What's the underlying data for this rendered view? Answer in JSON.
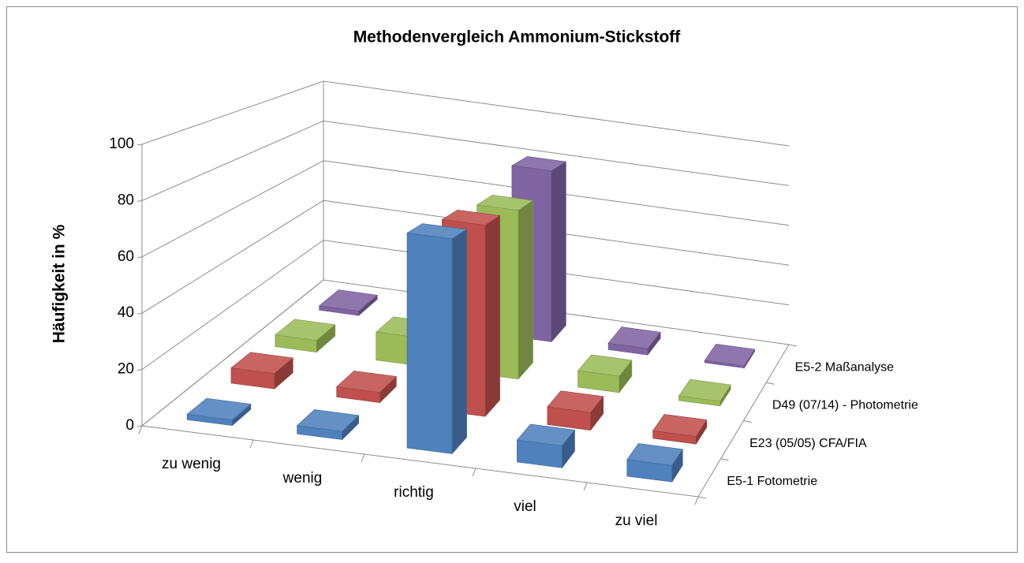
{
  "chart_data": {
    "type": "bar3d",
    "title": "Methodenvergleich Ammonium-Stickstoff",
    "y_label": "Häufigkeit in %",
    "categories": [
      "zu wenig",
      "wenig",
      "richtig",
      "viel",
      "zu viel"
    ],
    "series": [
      {
        "name": "E5-1 Fotometrie",
        "color": "#4f81bd",
        "values": [
          2,
          3,
          78,
          8,
          6
        ]
      },
      {
        "name": "E23 (05/05) CFA/FIA",
        "color": "#c0504d",
        "values": [
          6,
          4,
          75,
          7,
          3
        ]
      },
      {
        "name": "D49 (07/14) - Photometrie",
        "color": "#9bbb59",
        "values": [
          5,
          12,
          72,
          7,
          2
        ]
      },
      {
        "name": "E5-2 Maßanalyse",
        "color": "#8064a2",
        "values": [
          2,
          3,
          80,
          3,
          1
        ]
      }
    ],
    "ylim": [
      0,
      100
    ],
    "yticks": [
      0,
      20,
      40,
      60,
      80,
      100
    ],
    "grid": true
  }
}
